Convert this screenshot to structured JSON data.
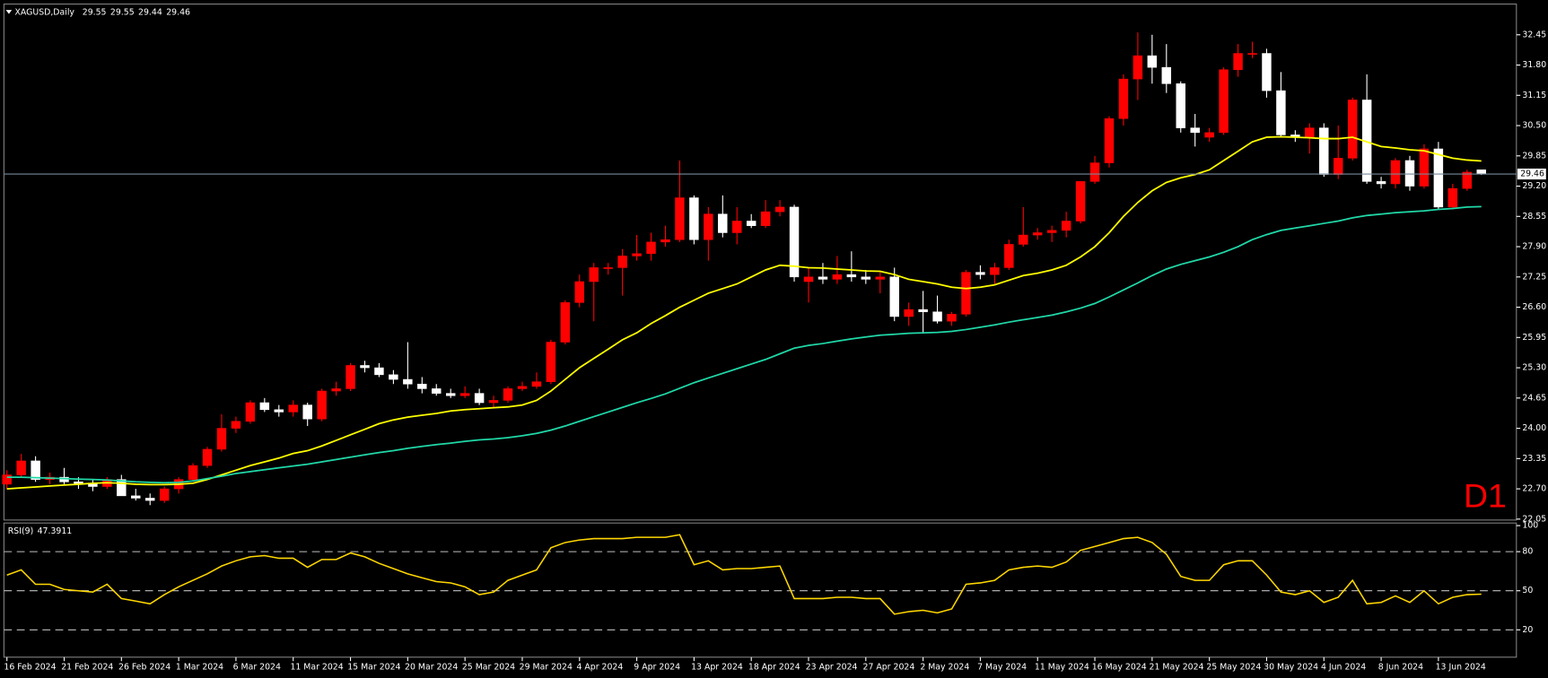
{
  "chart_data": [
    {
      "type": "candlestick",
      "title": "XAGUSD,Daily",
      "categories": [
        "16 Feb 2024",
        null,
        null,
        null,
        "21 Feb 2024",
        null,
        null,
        null,
        "26 Feb 2024",
        null,
        null,
        null,
        "1 Mar 2024",
        null,
        null,
        null,
        "6 Mar 2024",
        null,
        null,
        null,
        "11 Mar 2024",
        null,
        null,
        null,
        "15 Mar 2024",
        null,
        null,
        null,
        "20 Mar 2024",
        null,
        null,
        null,
        "25 Mar 2024",
        null,
        null,
        null,
        "29 Mar 2024",
        null,
        null,
        null,
        "4 Apr 2024",
        null,
        null,
        null,
        "9 Apr 2024",
        null,
        null,
        null,
        "13 Apr 2024",
        null,
        null,
        null,
        "18 Apr 2024",
        null,
        null,
        null,
        "23 Apr 2024",
        null,
        null,
        null,
        "27 Apr 2024",
        null,
        null,
        null,
        "2 May 2024",
        null,
        null,
        null,
        "7 May 2024",
        null,
        null,
        null,
        "11 May 2024",
        null,
        null,
        null,
        "16 May 2024",
        null,
        null,
        null,
        "21 May 2024",
        null,
        null,
        null,
        "25 May 2024",
        null,
        null,
        null,
        "30 May 2024",
        null,
        null,
        null,
        "4 Jun 2024",
        null,
        null,
        null,
        "8 Jun 2024",
        null,
        null,
        null,
        "13 Jun 2024",
        null,
        null,
        null
      ],
      "open": [
        22.8,
        23.0,
        23.3,
        22.9,
        22.95,
        22.85,
        22.8,
        22.75,
        22.9,
        22.55,
        22.5,
        22.45,
        22.7,
        22.9,
        23.2,
        23.55,
        24.0,
        24.15,
        24.55,
        24.4,
        24.35,
        24.5,
        24.2,
        24.8,
        24.85,
        25.35,
        25.3,
        25.15,
        25.05,
        24.95,
        24.85,
        24.75,
        24.7,
        24.75,
        24.55,
        24.6,
        24.85,
        24.9,
        25.0,
        25.85,
        26.7,
        27.15,
        27.45,
        27.45,
        27.7,
        27.75,
        28.0,
        28.05,
        28.95,
        28.05,
        28.6,
        28.2,
        28.45,
        28.35,
        28.65,
        28.75,
        27.15,
        27.25,
        27.2,
        27.3,
        27.25,
        27.2,
        27.25,
        26.4,
        26.55,
        26.5,
        26.3,
        26.45,
        27.35,
        27.3,
        27.45,
        27.95,
        28.15,
        28.2,
        28.25,
        28.45,
        29.3,
        29.7,
        30.65,
        31.5,
        32.0,
        31.75,
        31.4,
        30.45,
        30.25,
        30.35,
        31.7,
        32.05,
        32.05,
        31.25,
        30.3,
        30.25,
        30.45,
        29.45,
        29.8,
        31.05,
        29.3,
        29.25,
        29.75,
        29.2,
        30.0,
        28.75,
        29.15,
        29.55
      ],
      "high": [
        23.1,
        23.45,
        23.4,
        23.05,
        23.15,
        22.95,
        22.9,
        22.95,
        23.0,
        22.7,
        22.6,
        22.75,
        22.95,
        23.25,
        23.6,
        24.3,
        24.25,
        24.6,
        24.65,
        24.5,
        24.6,
        24.55,
        24.85,
        25.0,
        25.4,
        25.45,
        25.4,
        25.25,
        25.85,
        25.1,
        24.95,
        24.85,
        24.9,
        24.85,
        24.7,
        24.9,
        25.0,
        25.2,
        25.9,
        26.75,
        27.3,
        27.55,
        27.55,
        27.85,
        28.15,
        28.2,
        28.35,
        29.75,
        29.0,
        28.75,
        29.0,
        28.75,
        28.6,
        28.9,
        28.9,
        28.8,
        27.45,
        27.55,
        27.7,
        27.8,
        27.4,
        27.35,
        27.45,
        26.7,
        26.95,
        26.85,
        26.5,
        27.4,
        27.5,
        27.55,
        28.05,
        28.75,
        28.3,
        28.35,
        28.65,
        29.3,
        29.85,
        30.7,
        31.6,
        32.5,
        32.45,
        32.25,
        31.45,
        30.75,
        30.45,
        31.75,
        32.25,
        32.3,
        32.15,
        31.65,
        30.4,
        30.55,
        30.55,
        30.5,
        31.1,
        31.6,
        29.4,
        29.8,
        29.85,
        30.1,
        30.15,
        29.25,
        29.55,
        29.55
      ],
      "low": [
        22.7,
        22.95,
        22.85,
        22.8,
        22.8,
        22.7,
        22.65,
        22.7,
        22.55,
        22.45,
        22.35,
        22.4,
        22.6,
        22.85,
        23.15,
        23.5,
        23.9,
        24.1,
        24.35,
        24.25,
        24.25,
        24.05,
        24.15,
        24.7,
        24.8,
        25.2,
        25.1,
        24.95,
        24.85,
        24.75,
        24.7,
        24.65,
        24.65,
        24.5,
        24.45,
        24.55,
        24.8,
        24.85,
        24.95,
        25.8,
        26.6,
        26.3,
        27.3,
        26.85,
        27.6,
        27.6,
        27.9,
        28.0,
        27.95,
        27.6,
        28.1,
        27.95,
        28.3,
        28.3,
        28.55,
        27.15,
        26.7,
        27.1,
        27.1,
        27.15,
        27.1,
        26.9,
        26.3,
        26.2,
        26.05,
        26.25,
        26.2,
        26.4,
        27.2,
        27.1,
        27.4,
        27.9,
        28.05,
        28.0,
        28.1,
        28.4,
        29.25,
        29.6,
        30.5,
        31.05,
        31.4,
        31.2,
        30.35,
        30.05,
        30.15,
        30.3,
        31.55,
        31.95,
        31.1,
        30.25,
        30.15,
        29.9,
        29.4,
        29.35,
        29.75,
        29.25,
        29.15,
        29.15,
        29.1,
        29.15,
        28.7,
        28.7,
        29.1,
        29.44
      ],
      "close": [
        23.0,
        23.3,
        22.9,
        22.95,
        22.85,
        22.8,
        22.75,
        22.9,
        22.55,
        22.5,
        22.45,
        22.7,
        22.9,
        23.2,
        23.55,
        24.0,
        24.15,
        24.55,
        24.4,
        24.35,
        24.5,
        24.2,
        24.8,
        24.85,
        25.35,
        25.3,
        25.15,
        25.05,
        24.95,
        24.85,
        24.75,
        24.7,
        24.75,
        24.55,
        24.6,
        24.85,
        24.9,
        25.0,
        25.85,
        26.7,
        27.15,
        27.45,
        27.45,
        27.7,
        27.75,
        28.0,
        28.05,
        28.95,
        28.05,
        28.6,
        28.2,
        28.45,
        28.35,
        28.65,
        28.75,
        27.25,
        27.25,
        27.2,
        27.3,
        27.25,
        27.2,
        27.25,
        26.4,
        26.55,
        26.5,
        26.3,
        26.45,
        27.35,
        27.3,
        27.45,
        27.95,
        28.15,
        28.2,
        28.25,
        28.45,
        29.3,
        29.7,
        30.65,
        31.5,
        32.0,
        31.75,
        31.4,
        30.45,
        30.35,
        30.35,
        31.7,
        32.05,
        32.05,
        31.25,
        30.3,
        30.25,
        30.45,
        29.45,
        29.8,
        31.05,
        29.3,
        29.25,
        29.75,
        29.2,
        30.0,
        28.75,
        29.15,
        29.5,
        29.46
      ],
      "up_color": "#ff0000",
      "down_color": "#ffffff",
      "overlays": [
        {
          "color": "#ffff00",
          "values": [
            22.7,
            22.72,
            22.74,
            22.76,
            22.78,
            22.8,
            22.82,
            22.83,
            22.82,
            22.8,
            22.79,
            22.79,
            22.8,
            22.82,
            22.9,
            23.0,
            23.1,
            23.2,
            23.28,
            23.36,
            23.46,
            23.52,
            23.62,
            23.74,
            23.86,
            23.98,
            24.1,
            24.18,
            24.24,
            24.28,
            24.32,
            24.37,
            24.4,
            24.42,
            24.44,
            24.46,
            24.5,
            24.6,
            24.8,
            25.05,
            25.3,
            25.5,
            25.7,
            25.9,
            26.05,
            26.25,
            26.42,
            26.6,
            26.75,
            26.9,
            27.0,
            27.1,
            27.25,
            27.4,
            27.5,
            27.48,
            27.45,
            27.44,
            27.42,
            27.4,
            27.38,
            27.37,
            27.3,
            27.2,
            27.15,
            27.1,
            27.03,
            27.0,
            27.03,
            27.08,
            27.18,
            27.28,
            27.33,
            27.4,
            27.5,
            27.68,
            27.9,
            28.2,
            28.55,
            28.85,
            29.1,
            29.28,
            29.38,
            29.45,
            29.55,
            29.75,
            29.95,
            30.15,
            30.25,
            30.26,
            30.25,
            30.24,
            30.22,
            30.22,
            30.25,
            30.15,
            30.05,
            30.02,
            29.98,
            29.96,
            29.88,
            29.8,
            29.76,
            29.74
          ]
        },
        {
          "color": "#20d8a8",
          "values": [
            22.95,
            22.95,
            22.94,
            22.93,
            22.92,
            22.91,
            22.9,
            22.89,
            22.87,
            22.85,
            22.84,
            22.83,
            22.84,
            22.87,
            22.92,
            22.97,
            23.03,
            23.07,
            23.11,
            23.15,
            23.19,
            23.23,
            23.28,
            23.33,
            23.38,
            23.43,
            23.48,
            23.52,
            23.57,
            23.61,
            23.65,
            23.68,
            23.72,
            23.75,
            23.77,
            23.8,
            23.84,
            23.89,
            23.96,
            24.05,
            24.15,
            24.25,
            24.35,
            24.45,
            24.55,
            24.64,
            24.74,
            24.86,
            24.98,
            25.08,
            25.18,
            25.28,
            25.38,
            25.48,
            25.6,
            25.72,
            25.78,
            25.82,
            25.87,
            25.92,
            25.96,
            26.0,
            26.02,
            26.04,
            26.05,
            26.06,
            26.08,
            26.12,
            26.17,
            26.22,
            26.28,
            26.33,
            26.38,
            26.43,
            26.5,
            26.58,
            26.68,
            26.82,
            26.97,
            27.12,
            27.28,
            27.42,
            27.52,
            27.6,
            27.68,
            27.78,
            27.9,
            28.05,
            28.16,
            28.25,
            28.3,
            28.35,
            28.4,
            28.45,
            28.52,
            28.57,
            28.6,
            28.63,
            28.65,
            28.67,
            28.7,
            28.72,
            28.75,
            28.76
          ]
        }
      ],
      "ylim": [
        22.03,
        33.11
      ],
      "yticks": [
        32.45,
        {
          "value": 31.8,
          "label": "31.80"
        },
        31.15,
        {
          "value": 30.5,
          "label": "30.50"
        },
        29.85,
        {
          "value": 29.2,
          "label": "29.20"
        },
        28.55,
        {
          "value": 27.9,
          "label": "27.90"
        },
        27.25,
        {
          "value": 26.6,
          "label": "26.60"
        },
        25.95,
        {
          "value": 25.3,
          "label": "25.30"
        },
        24.65,
        {
          "value": 24,
          "label": "24.00"
        },
        23.35,
        {
          "value": 22.7,
          "label": "22.70"
        },
        22.05
      ],
      "price_line_color": "#778899",
      "annotation": "D1",
      "annotation_color": "#ff0000"
    },
    {
      "type": "line",
      "title": "RSI(9)",
      "series": [
        {
          "color": "#ffd700",
          "values": [
            62,
            66,
            55,
            55,
            51,
            50,
            49,
            55,
            44,
            42,
            40,
            47,
            53,
            58,
            63,
            69,
            73,
            76,
            77,
            75,
            75,
            68,
            74,
            74,
            79,
            76,
            71,
            67,
            63,
            60,
            57,
            56,
            53,
            47,
            49,
            58,
            62,
            66,
            83,
            87,
            89,
            90,
            90,
            90,
            91,
            91,
            91,
            93,
            70,
            73,
            66,
            67,
            67,
            68,
            69,
            44,
            44,
            44,
            45,
            45,
            44,
            44,
            32,
            34,
            35,
            33,
            36,
            55,
            56,
            58,
            66,
            68,
            69,
            68,
            72,
            81,
            84,
            87,
            90,
            91,
            87,
            78,
            61,
            58,
            58,
            70,
            73,
            73,
            62,
            49,
            47,
            50,
            41,
            45,
            58,
            40,
            41,
            46,
            41,
            50,
            40,
            45,
            47,
            47.3911
          ]
        }
      ],
      "ylim": [
        -1,
        102
      ],
      "yticks": [
        100,
        80,
        50,
        20
      ],
      "levels": [
        80,
        50,
        20
      ]
    }
  ]
}
